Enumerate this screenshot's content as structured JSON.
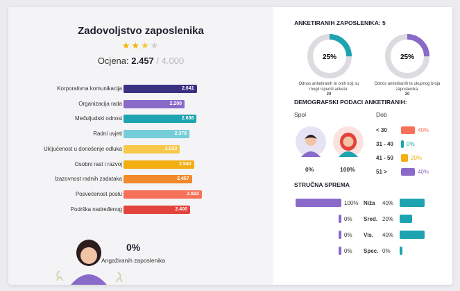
{
  "left": {
    "title": "Zadovoljstvo zaposlenika",
    "stars": {
      "full": 2,
      "half": 1,
      "empty": 1
    },
    "score_label": "Ocjena:",
    "score_value": "2.457",
    "score_max": "/ 4.000",
    "bar_max": 4,
    "bars": [
      {
        "label": "Korporativna komunikacija",
        "value": "2.641",
        "color": "#3b3182"
      },
      {
        "label": "Organizacija rada",
        "value": "2.200",
        "color": "#8a6ac9"
      },
      {
        "label": "Međuljudski odnosi",
        "value": "2.636",
        "color": "#1ea3b0"
      },
      {
        "label": "Radni uvjeti",
        "value": "2.378",
        "color": "#74cdd8"
      },
      {
        "label": "Uključenost u donošenje odluka",
        "value": "2.033",
        "color": "#f7c84a"
      },
      {
        "label": "Osobni rast i razvoj",
        "value": "2.540",
        "color": "#f3ae12"
      },
      {
        "label": "Izazovnost radnih zadataka",
        "value": "2.467",
        "color": "#f2892b"
      },
      {
        "label": "Posvećenost poslu",
        "value": "2.822",
        "color": "#f7705a"
      },
      {
        "label": "Podrška nadređenog",
        "value": "2.400",
        "color": "#e2433a"
      }
    ],
    "engaged_pct": "0%",
    "engaged_label": "Angažiranih zaposlenika"
  },
  "right": {
    "surveyed_title": "ANKETIRANIH ZAPOSLENIKA: 5",
    "donuts": [
      {
        "pct": 25,
        "label": "25%",
        "color": "#1ea3b0",
        "caption": "Odnos anketiranih te onih koji su mogli ispuniti anketu:",
        "count": "20"
      },
      {
        "pct": 25,
        "label": "25%",
        "color": "#8a6ac9",
        "caption": "Odnos anketiranih te ukupnog broja zaposlenika:",
        "count": "20"
      }
    ],
    "demo_title": "DEMOGRAFSKI PODACI ANKETIRANIH:",
    "gender_title": "Spol",
    "male_pct": "0%",
    "female_pct": "100%",
    "age_title": "Dob",
    "ages": [
      {
        "label": "< 30",
        "pct": "40%",
        "value": 40,
        "color": "#f7705a"
      },
      {
        "label": "31 - 40",
        "pct": "0%",
        "value": 0,
        "color": "#1ea3b0"
      },
      {
        "label": "41 - 50",
        "pct": "20%",
        "value": 20,
        "color": "#f3ae12"
      },
      {
        "label": "51 >",
        "pct": "40%",
        "value": 40,
        "color": "#8a6ac9"
      }
    ],
    "edu_title": "STRUČNA SPREMA",
    "education": [
      {
        "left_pct": "100%",
        "left_value": 100,
        "label": "Niža",
        "right_pct": "40%",
        "right_value": 40
      },
      {
        "left_pct": "0%",
        "left_value": 0,
        "label": "Sred.",
        "right_pct": "20%",
        "right_value": 20
      },
      {
        "left_pct": "0%",
        "left_value": 0,
        "label": "Vis.",
        "right_pct": "40%",
        "right_value": 40
      },
      {
        "left_pct": "0%",
        "left_value": 0,
        "label": "Spec.",
        "right_pct": "0%",
        "right_value": 0
      }
    ],
    "edu_left_color": "#8a6ac9",
    "edu_right_color": "#1ea3b0"
  }
}
